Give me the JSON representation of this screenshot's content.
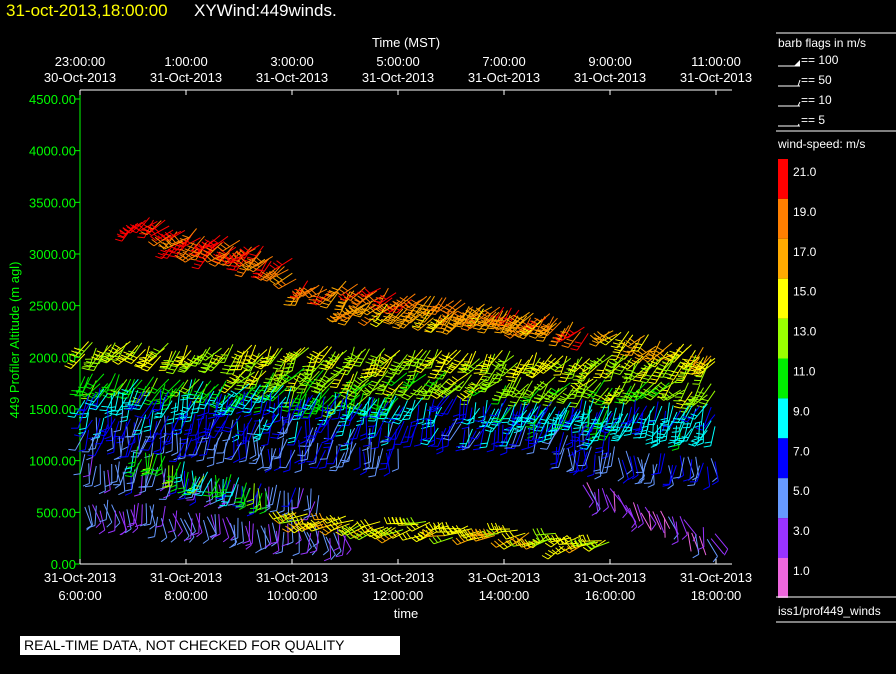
{
  "header": {
    "date_time": "31-oct-2013,18:00:00",
    "title": "XYWind:449winds."
  },
  "warning": "REAL-TIME DATA, NOT CHECKED FOR QUALITY",
  "chart_data": {
    "type": "wind-barb time-height",
    "top_axis": {
      "label": "Time (MST)",
      "ticks": [
        {
          "time": "23:00:00",
          "date": "30-Oct-2013"
        },
        {
          "time": "1:00:00",
          "date": "31-Oct-2013"
        },
        {
          "time": "3:00:00",
          "date": "31-Oct-2013"
        },
        {
          "time": "5:00:00",
          "date": "31-Oct-2013"
        },
        {
          "time": "7:00:00",
          "date": "31-Oct-2013"
        },
        {
          "time": "9:00:00",
          "date": "31-Oct-2013"
        },
        {
          "time": "11:00:00",
          "date": "31-Oct-2013"
        }
      ]
    },
    "bottom_axis": {
      "label": "time",
      "ticks": [
        {
          "date": "31-Oct-2013",
          "time": "6:00:00"
        },
        {
          "date": "31-Oct-2013",
          "time": "8:00:00"
        },
        {
          "date": "31-Oct-2013",
          "time": "10:00:00"
        },
        {
          "date": "31-Oct-2013",
          "time": "12:00:00"
        },
        {
          "date": "31-Oct-2013",
          "time": "14:00:00"
        },
        {
          "date": "31-Oct-2013",
          "time": "16:00:00"
        },
        {
          "date": "31-Oct-2013",
          "time": "18:00:00"
        }
      ],
      "hours": [
        6,
        18
      ]
    },
    "y_axis": {
      "label": "449 Profiler Altitude (m agl)",
      "ticks": [
        "0.00",
        "500.00",
        "1000.00",
        "1500.00",
        "2000.00",
        "2500.00",
        "3000.00",
        "3500.00",
        "4000.00",
        "4500.00"
      ],
      "ylim": [
        0,
        4500
      ]
    },
    "barb_legend": {
      "title": "barb flags in m/s",
      "items": [
        "== 100",
        "== 50",
        "== 10",
        "== 5"
      ]
    },
    "speed_legend": {
      "title": "wind-speed: m/s",
      "labels": [
        "21.0",
        "19.0",
        "17.0",
        "15.0",
        "13.0",
        "11.0",
        "9.0",
        "7.0",
        "5.0",
        "3.0",
        "1.0"
      ],
      "colors": [
        "#ff0000",
        "#ff7f00",
        "#ffaa00",
        "#ffff00",
        "#99ff00",
        "#00ee00",
        "#00ffff",
        "#0000ff",
        "#6699ff",
        "#9933ff",
        "#ee66dd"
      ]
    },
    "dataset_label": "iss1/prof449_winds",
    "wind_layers": [
      {
        "t_start": 7.0,
        "t_end": 9.6,
        "alt_start": 3350,
        "alt_end": 3000,
        "speed": 21,
        "dir": 225
      },
      {
        "t_start": 7.7,
        "t_end": 10.0,
        "alt_start": 3150,
        "alt_end": 2900,
        "speed": 19,
        "dir": 230
      },
      {
        "t_start": 10.0,
        "t_end": 15.6,
        "alt_start": 2750,
        "alt_end": 2300,
        "speed": 19,
        "dir": 225
      },
      {
        "t_start": 11.0,
        "t_end": 15.0,
        "alt_start": 2500,
        "alt_end": 2350,
        "speed": 17,
        "dir": 225
      },
      {
        "t_start": 16.0,
        "t_end": 18.0,
        "alt_start": 2250,
        "alt_end": 2000,
        "speed": 16,
        "dir": 225
      },
      {
        "t_start": 6.0,
        "t_end": 18.0,
        "alt_start": 2100,
        "alt_end": 1950,
        "speed": 14,
        "dir": 215
      },
      {
        "t_start": 9.0,
        "t_end": 18.0,
        "alt_start": 1850,
        "alt_end": 1700,
        "speed": 13,
        "dir": 220
      },
      {
        "t_start": 6.0,
        "t_end": 12.0,
        "alt_start": 1800,
        "alt_end": 1600,
        "speed": 11,
        "dir": 210
      },
      {
        "t_start": 6.0,
        "t_end": 18.0,
        "alt_start": 1650,
        "alt_end": 1500,
        "speed": 8,
        "dir": 200
      },
      {
        "t_start": 14.0,
        "t_end": 18.0,
        "alt_start": 1500,
        "alt_end": 1350,
        "speed": 9,
        "dir": 200
      },
      {
        "t_start": 6.0,
        "t_end": 16.0,
        "alt_start": 1450,
        "alt_end": 1300,
        "speed": 7,
        "dir": 195
      },
      {
        "t_start": 6.0,
        "t_end": 12.0,
        "alt_start": 1300,
        "alt_end": 1100,
        "speed": 6,
        "dir": 190
      },
      {
        "t_start": 15.0,
        "t_end": 18.0,
        "alt_start": 1150,
        "alt_end": 950,
        "speed": 6,
        "dir": 180
      },
      {
        "t_start": 6.0,
        "t_end": 10.5,
        "alt_start": 1000,
        "alt_end": 650,
        "speed": 5,
        "dir": 185
      },
      {
        "t_start": 7.0,
        "t_end": 9.5,
        "alt_start": 1100,
        "alt_end": 700,
        "speed": 11,
        "dir": 190
      },
      {
        "t_start": 6.0,
        "t_end": 11.0,
        "alt_start": 600,
        "alt_end": 300,
        "speed": 4,
        "dir": 170
      },
      {
        "t_start": 10.0,
        "t_end": 16.0,
        "alt_start": 450,
        "alt_end": 200,
        "speed": 15,
        "dir": 250
      },
      {
        "t_start": 15.5,
        "t_end": 18.0,
        "alt_start": 800,
        "alt_end": 250,
        "speed": 3,
        "dir": 160
      }
    ]
  }
}
